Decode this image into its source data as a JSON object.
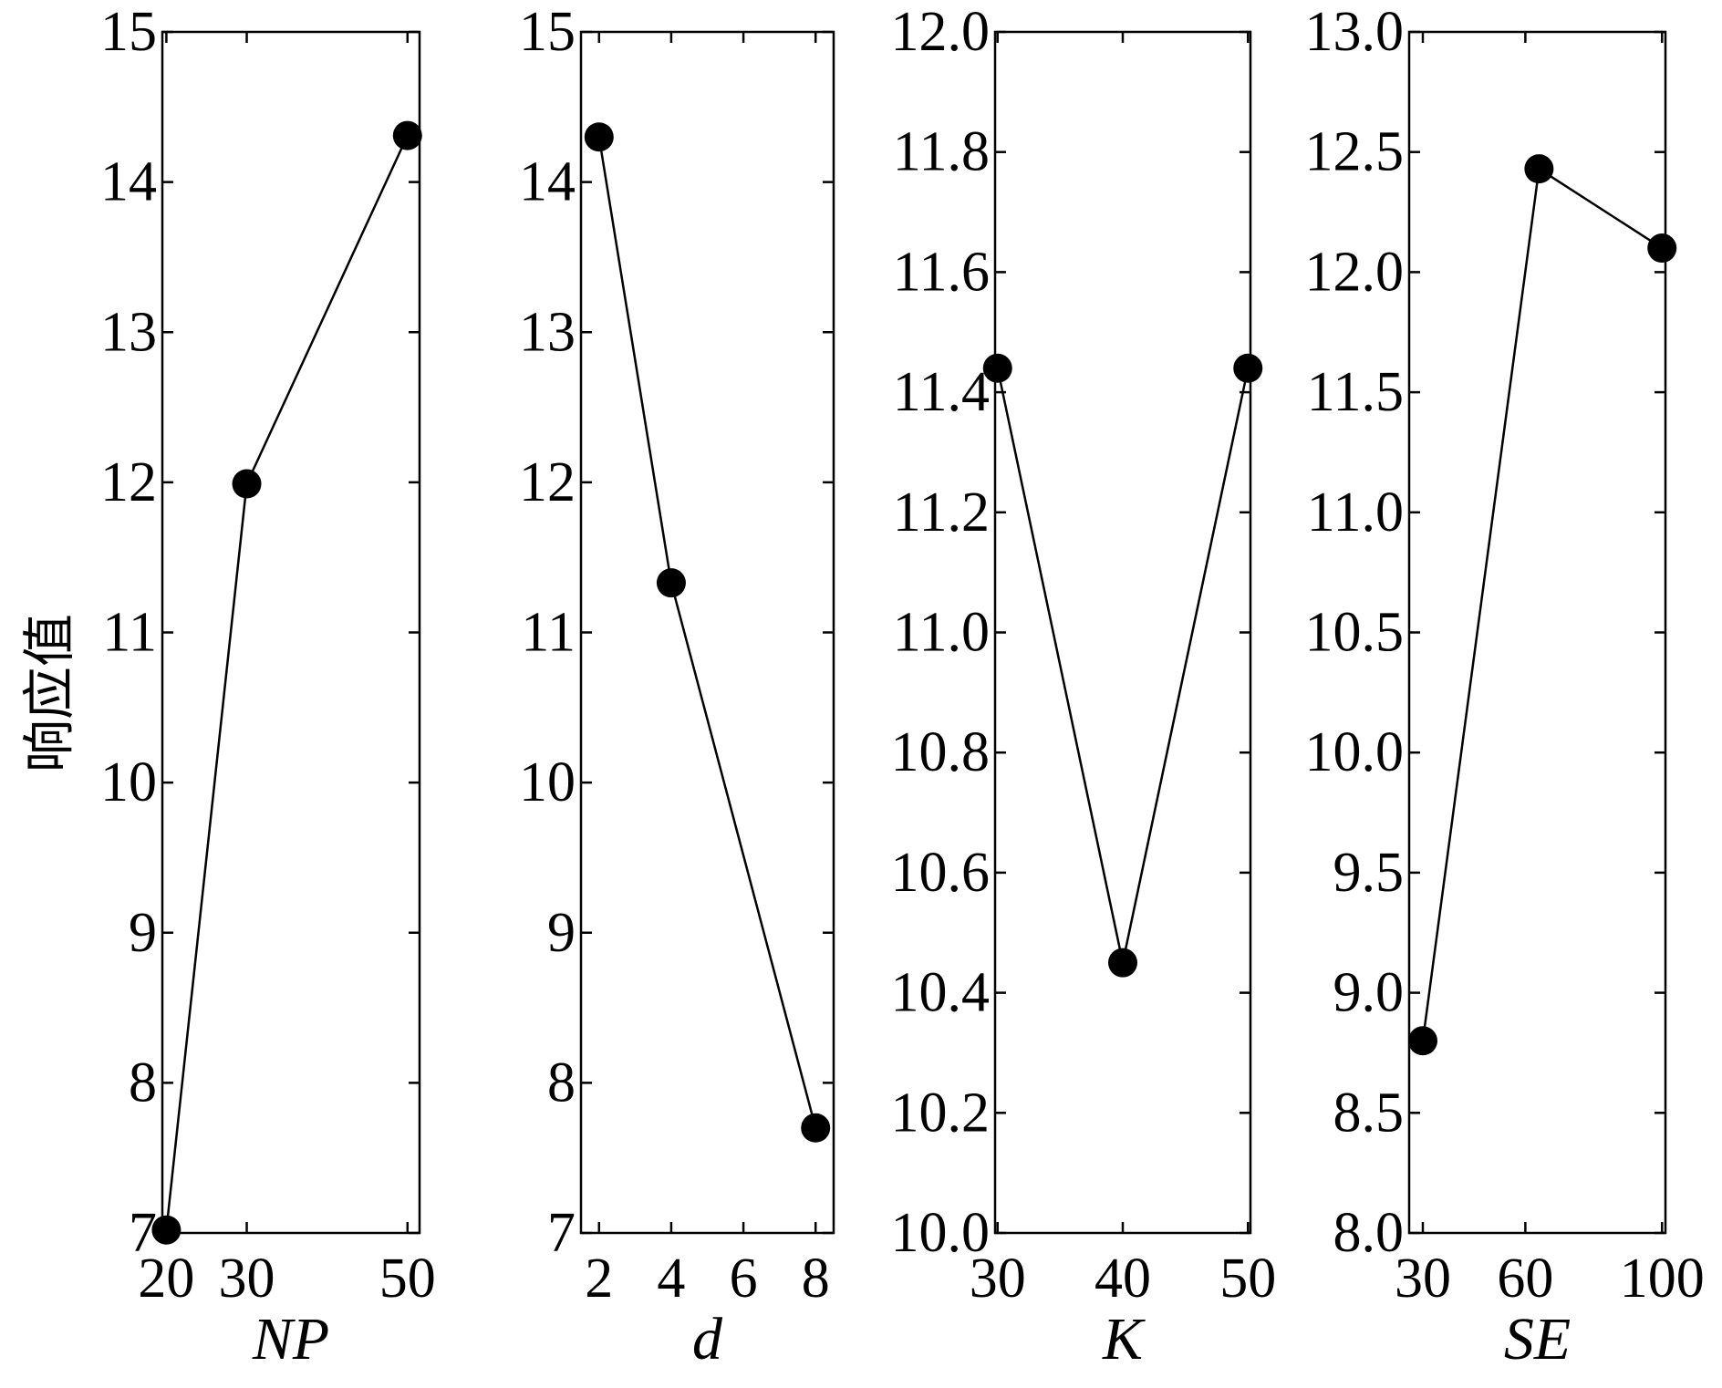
{
  "figure": {
    "ylabel": "响应值"
  },
  "chart_data": [
    {
      "type": "line",
      "xlabel": "NP",
      "xticks": [
        20,
        30,
        50
      ],
      "xlim": [
        19.5,
        51.5
      ],
      "ylim": [
        7,
        15
      ],
      "yticks": [
        "7",
        "8",
        "9",
        "10",
        "11",
        "12",
        "13",
        "14",
        "15"
      ],
      "x": [
        20,
        30,
        50
      ],
      "values": [
        7.02,
        11.99,
        14.31
      ],
      "grid": false
    },
    {
      "type": "line",
      "xlabel": "d",
      "xticks": [
        2,
        4,
        6,
        8
      ],
      "xlim": [
        1.5,
        8.5
      ],
      "ylim": [
        7,
        15
      ],
      "yticks": [
        "7",
        "8",
        "9",
        "10",
        "11",
        "12",
        "13",
        "14",
        "15"
      ],
      "x": [
        2,
        4,
        8
      ],
      "values": [
        14.3,
        11.33,
        7.7
      ],
      "grid": false
    },
    {
      "type": "line",
      "xlabel": "K",
      "xticks": [
        30,
        40,
        50
      ],
      "xlim": [
        29.8,
        50.2
      ],
      "ylim": [
        10.0,
        12.0
      ],
      "yticks": [
        "10.0",
        "10.2",
        "10.4",
        "10.6",
        "10.8",
        "11.0",
        "11.2",
        "11.4",
        "11.6",
        "11.8",
        "12.0"
      ],
      "x": [
        30,
        40,
        50
      ],
      "values": [
        11.44,
        10.45,
        11.44
      ],
      "grid": false
    },
    {
      "type": "line",
      "xlabel": "SE",
      "xticks": [
        30,
        60,
        100
      ],
      "xlim": [
        26,
        101
      ],
      "ylim": [
        8.0,
        13.0
      ],
      "yticks": [
        "8.0",
        "8.5",
        "9.0",
        "9.5",
        "10.0",
        "10.5",
        "11.0",
        "11.5",
        "12.0",
        "12.5",
        "13.0"
      ],
      "x": [
        30,
        64,
        100
      ],
      "values": [
        8.8,
        12.43,
        12.1
      ],
      "grid": false
    }
  ]
}
